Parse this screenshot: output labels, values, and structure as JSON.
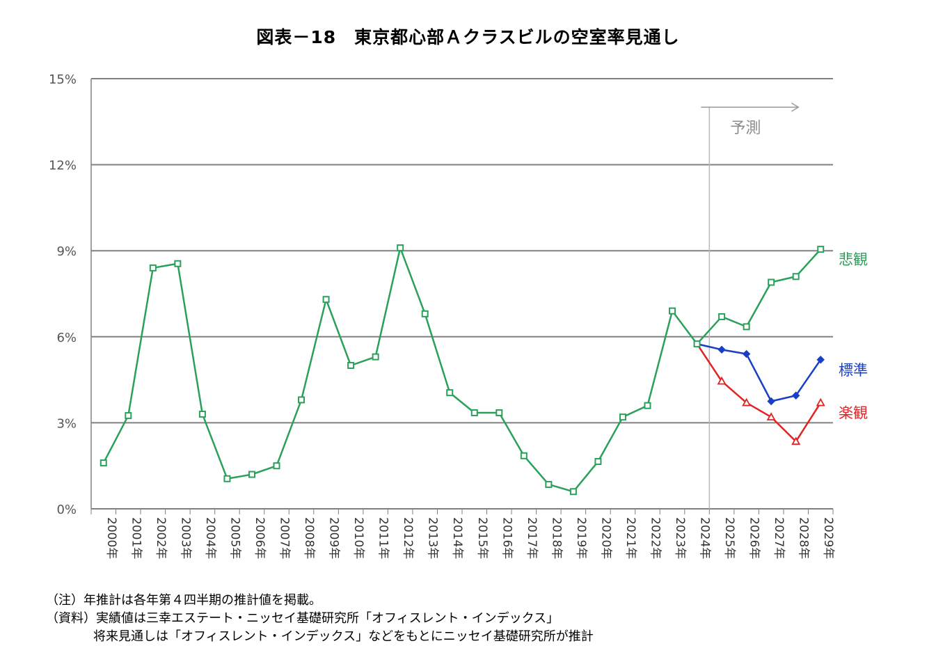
{
  "chart_data": {
    "type": "line",
    "title": "図表－18　東京都心部Ａクラスビルの空室率見通し",
    "x": [
      "2000年",
      "2001年",
      "2002年",
      "2003年",
      "2004年",
      "2005年",
      "2006年",
      "2007年",
      "2008年",
      "2009年",
      "2010年",
      "2011年",
      "2012年",
      "2013年",
      "2014年",
      "2015年",
      "2016年",
      "2017年",
      "2018年",
      "2019年",
      "2020年",
      "2021年",
      "2022年",
      "2023年",
      "2024年",
      "2025年",
      "2026年",
      "2027年",
      "2028年",
      "2029年"
    ],
    "y_ticks": [
      "0%",
      "3%",
      "6%",
      "9%",
      "12%",
      "15%"
    ],
    "ylim": [
      0,
      15
    ],
    "grid": "horizontal",
    "series": [
      {
        "name": "悲観",
        "color": "#2aa05a",
        "marker": "square",
        "values": [
          1.6,
          3.25,
          8.4,
          8.55,
          3.3,
          1.05,
          1.2,
          1.5,
          3.8,
          7.3,
          5.0,
          5.3,
          9.1,
          6.8,
          4.05,
          3.35,
          3.35,
          1.85,
          0.85,
          0.6,
          1.65,
          3.2,
          3.6,
          6.9,
          5.75,
          6.7,
          6.35,
          7.9,
          8.1,
          9.05
        ]
      },
      {
        "name": "標準",
        "color": "#1a3fc7",
        "marker": "diamond",
        "values": [
          null,
          null,
          null,
          null,
          null,
          null,
          null,
          null,
          null,
          null,
          null,
          null,
          null,
          null,
          null,
          null,
          null,
          null,
          null,
          null,
          null,
          null,
          null,
          null,
          5.75,
          5.55,
          5.4,
          3.75,
          3.95,
          5.2
        ]
      },
      {
        "name": "楽観",
        "color": "#e02323",
        "marker": "triangle",
        "values": [
          null,
          null,
          null,
          null,
          null,
          null,
          null,
          null,
          null,
          null,
          null,
          null,
          null,
          null,
          null,
          null,
          null,
          null,
          null,
          null,
          null,
          null,
          null,
          null,
          5.75,
          4.45,
          3.7,
          3.2,
          2.35,
          3.7
        ]
      }
    ],
    "forecast_label": "予測",
    "forecast_start": "2024年"
  },
  "notes": [
    "（注）年推計は各年第４四半期の推計値を掲載。",
    "（資料）実績値は三幸エステート・ニッセイ基礎研究所「オフィスレント・インデックス」",
    "将来見通しは「オフィスレント・インデックス」などをもとにニッセイ基礎研究所が推計"
  ]
}
